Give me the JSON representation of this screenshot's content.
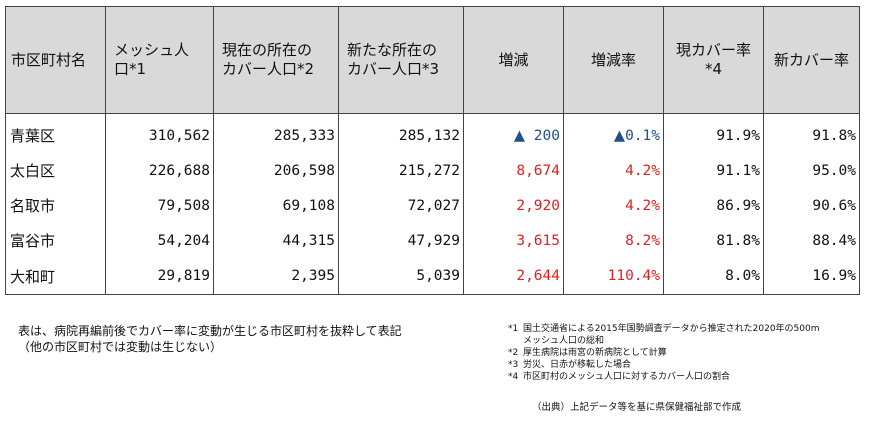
{
  "table": {
    "headers": [
      {
        "l1": "市区町村名",
        "l2": ""
      },
      {
        "l1": "メッシュ人",
        "l2": "口*1"
      },
      {
        "l1": "現在の所在の",
        "l2": "カバー人口*2"
      },
      {
        "l1": "新たな所在の",
        "l2": "カバー人口*3"
      },
      {
        "l1": "増減",
        "l2": ""
      },
      {
        "l1": "増減率",
        "l2": ""
      },
      {
        "l1": "現カバー率",
        "l2": "*4"
      },
      {
        "l1": "新カバー率",
        "l2": ""
      }
    ],
    "rows": [
      {
        "name": "青葉区",
        "mesh": "310,562",
        "current": "285,333",
        "new": "285,132",
        "diff_mark": "▲",
        "diff": "200",
        "rate_mark": "▲",
        "rate": "0.1%",
        "cur_rate": "91.9%",
        "new_rate": "91.8%",
        "negative": true
      },
      {
        "name": "太白区",
        "mesh": "226,688",
        "current": "206,598",
        "new": "215,272",
        "diff_mark": "",
        "diff": "8,674",
        "rate_mark": "",
        "rate": "4.2%",
        "cur_rate": "91.1%",
        "new_rate": "95.0%",
        "negative": false
      },
      {
        "name": "名取市",
        "mesh": "79,508",
        "current": "69,108",
        "new": "72,027",
        "diff_mark": "",
        "diff": "2,920",
        "rate_mark": "",
        "rate": "4.2%",
        "cur_rate": "86.9%",
        "new_rate": "90.6%",
        "negative": false
      },
      {
        "name": "富谷市",
        "mesh": "54,204",
        "current": "44,315",
        "new": "47,929",
        "diff_mark": "",
        "diff": "3,615",
        "rate_mark": "",
        "rate": "8.2%",
        "cur_rate": "81.8%",
        "new_rate": "88.4%",
        "negative": false
      },
      {
        "name": "大和町",
        "mesh": "29,819",
        "current": "2,395",
        "new": "5,039",
        "diff_mark": "",
        "diff": "2,644",
        "rate_mark": "",
        "rate": "110.4%",
        "cur_rate": "8.0%",
        "new_rate": "16.9%",
        "negative": false
      }
    ]
  },
  "note_left": {
    "line1": "表は、病院再編前後でカバー率に変動が生じる市区町村を抜粋して表記",
    "line2": "（他の市区町村では変動は生じない）"
  },
  "footnotes": [
    {
      "mark": "*1",
      "text": "国土交通省による2015年国勢調査データから推定された2020年の500m",
      "cont": "メッシュ人口の総和"
    },
    {
      "mark": "*2",
      "text": "厚生病院は雨宮の新病院として計算",
      "cont": ""
    },
    {
      "mark": "*3",
      "text": "労災、日赤が移転した場合",
      "cont": ""
    },
    {
      "mark": "*4",
      "text": "市区町村のメッシュ人口に対するカバー人口の割合",
      "cont": ""
    }
  ],
  "source": "（出典）上記データ等を基に県保健福祉部で作成",
  "colors": {
    "increase": "#e02020",
    "decrease": "#1f4e89",
    "header_bg": "#d9d9d9"
  }
}
